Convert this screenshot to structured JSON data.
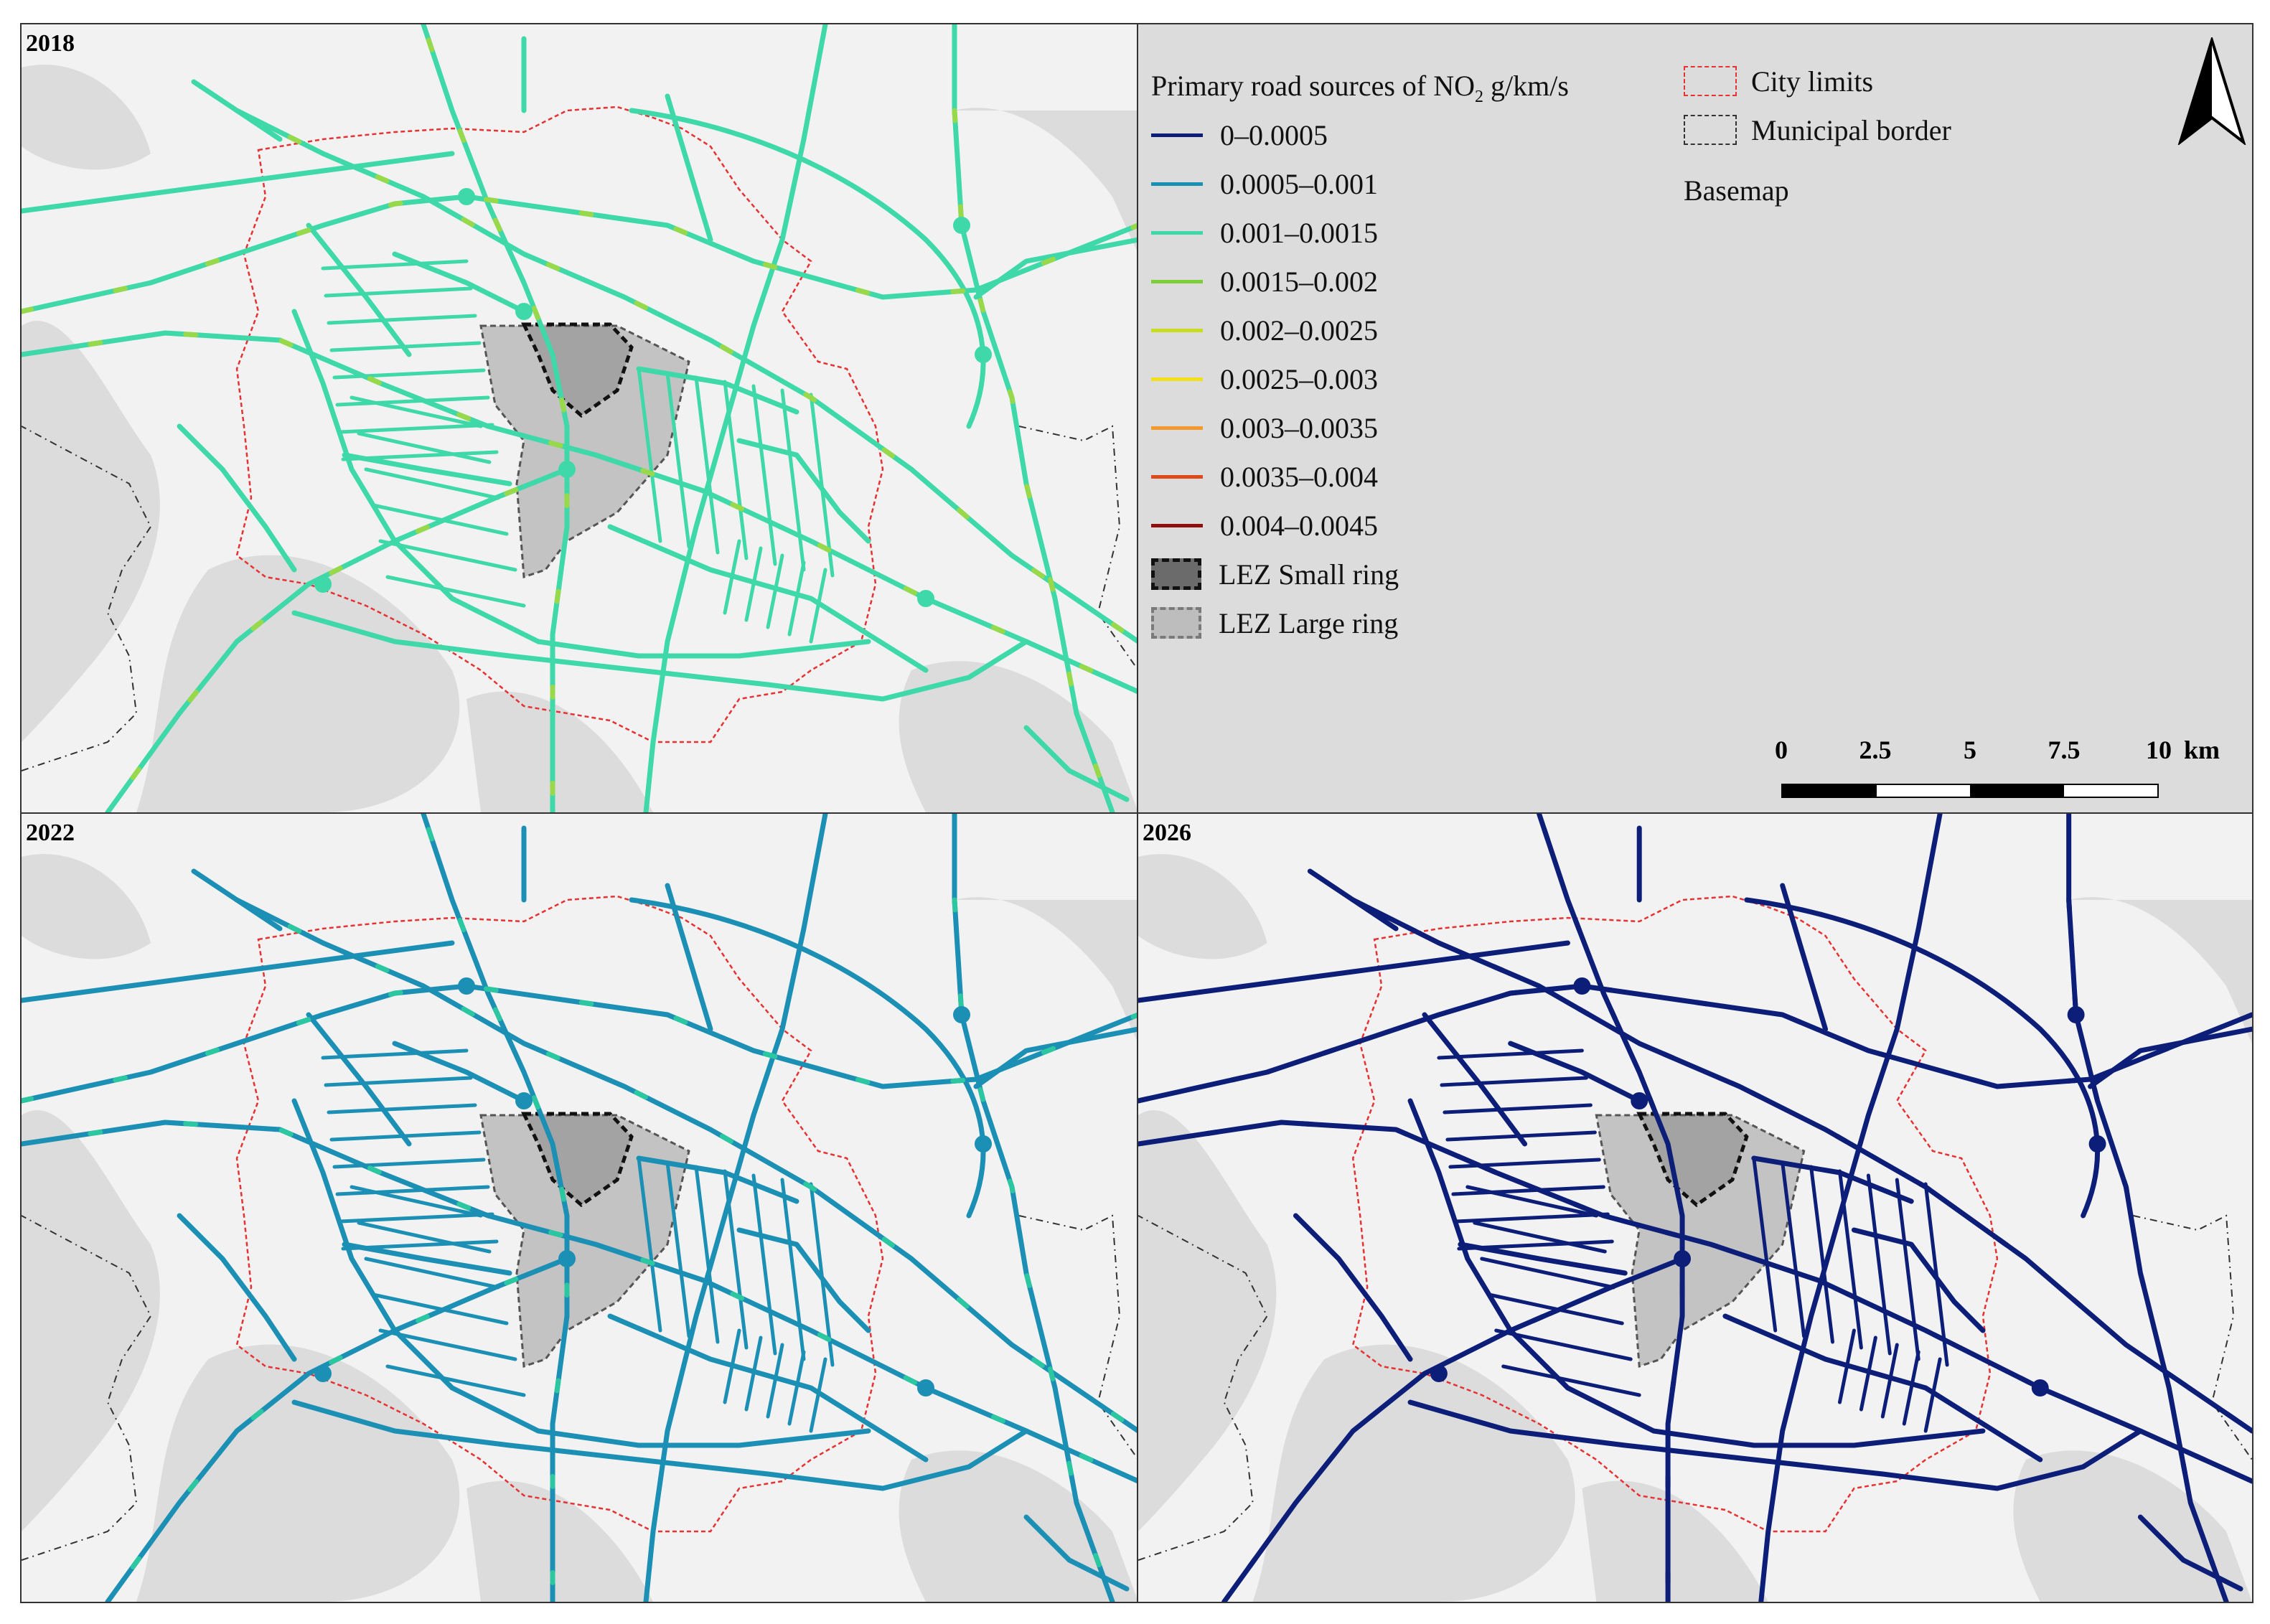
{
  "panels": {
    "p2018": {
      "year": "2018",
      "road_color": "#3fd8a8",
      "accent_color": "#97d94a"
    },
    "p2022": {
      "year": "2022",
      "road_color": "#1c8fb4",
      "accent_color": "#2bc7a0"
    },
    "p2026": {
      "year": "2026",
      "road_color": "#0c1e78",
      "accent_color": "#0c1e78"
    }
  },
  "legend": {
    "title_main": "Primary road sources of NO",
    "title_sub": "2",
    "title_unit": " g/km/s",
    "classes": [
      {
        "label": "0–0.0005",
        "color": "#0c1e78"
      },
      {
        "label": "0.0005–0.001",
        "color": "#1c8fb4"
      },
      {
        "label": "0.001–0.0015",
        "color": "#3fd8a8"
      },
      {
        "label": "0.0015–0.002",
        "color": "#7dcf3a"
      },
      {
        "label": "0.002–0.0025",
        "color": "#c9dd1e"
      },
      {
        "label": "0.0025–0.003",
        "color": "#f4e01a"
      },
      {
        "label": "0.003–0.0035",
        "color": "#f29a2e"
      },
      {
        "label": "0.0035–0.004",
        "color": "#de4a1a"
      },
      {
        "label": "0.004–0.0045",
        "color": "#8f0e0e"
      }
    ],
    "lez_small": "LEZ Small ring",
    "lez_large": "LEZ Large ring",
    "city_limits": "City limits",
    "municipal_border": "Municipal border",
    "basemap": "Basemap",
    "city_limits_color": "#e53232"
  },
  "scale": {
    "ticks": [
      "0",
      "2.5",
      "5",
      "7.5",
      "10"
    ],
    "unit": "km"
  }
}
